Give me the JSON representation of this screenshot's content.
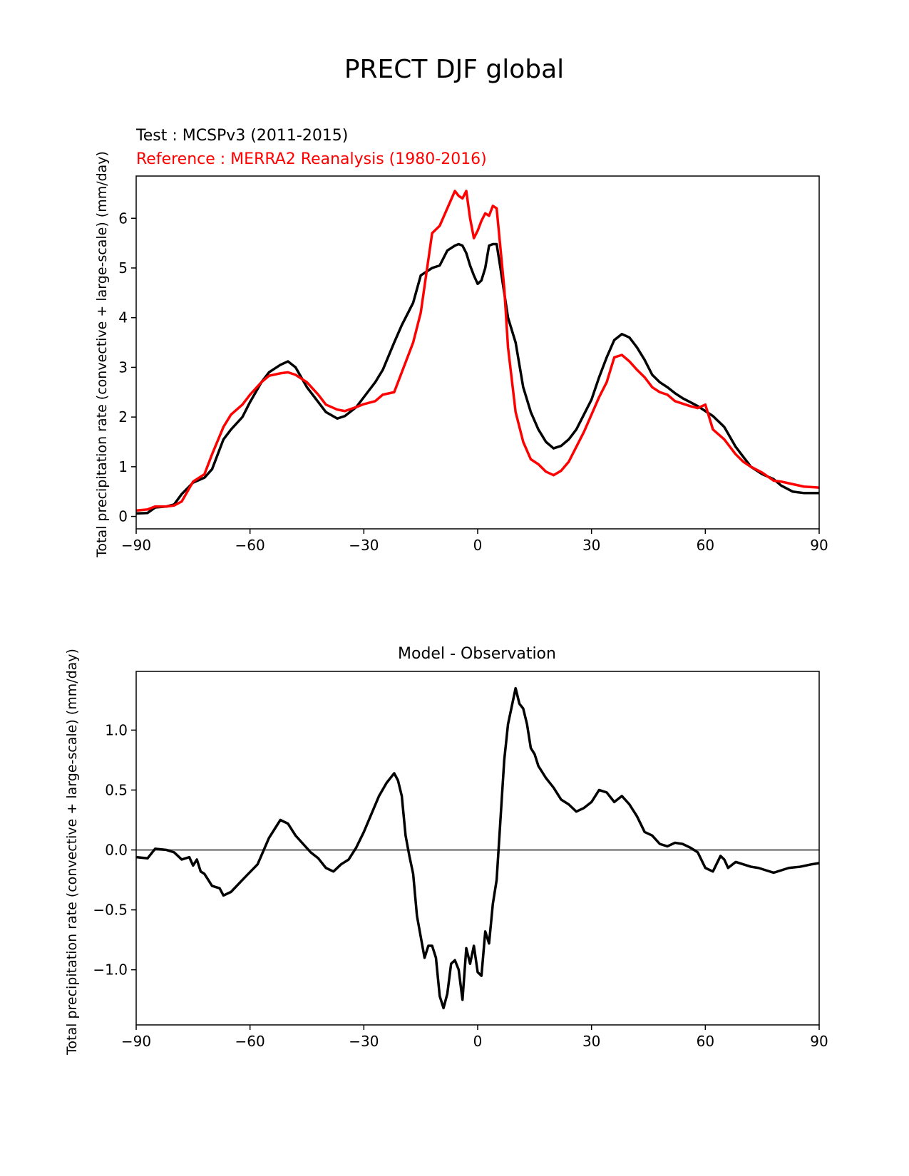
{
  "figure": {
    "title": "PRECT DJF global"
  },
  "colors": {
    "test": "#000000",
    "reference": "#ff0000",
    "zero_line": "#808080"
  },
  "chart_data": [
    {
      "type": "line",
      "test_label": "Test : MCSPv3 (2011-2015)",
      "reference_label": "Reference : MERRA2 Reanalysis (1980-2016)",
      "xlabel": "",
      "ylabel": "Total precipitation rate (convective + large-scale) (mm/day)",
      "xlim": [
        -90,
        90
      ],
      "ylim": [
        -0.25,
        6.85
      ],
      "xticks": [
        -90,
        -60,
        -30,
        0,
        30,
        60,
        90
      ],
      "xtick_labels": [
        "−90",
        "−60",
        "−30",
        "0",
        "30",
        "60",
        "90"
      ],
      "yticks": [
        0,
        1,
        2,
        3,
        4,
        5,
        6
      ],
      "ytick_labels": [
        "0",
        "1",
        "2",
        "3",
        "4",
        "5",
        "6"
      ],
      "grid": false,
      "x": [
        -90,
        -87,
        -85,
        -82,
        -80,
        -78,
        -75,
        -72,
        -70,
        -67,
        -65,
        -62,
        -60,
        -57,
        -55,
        -52,
        -50,
        -48,
        -45,
        -42,
        -40,
        -37,
        -35,
        -32,
        -30,
        -27,
        -25,
        -22,
        -20,
        -17,
        -15,
        -12,
        -10,
        -8,
        -6,
        -5,
        -4,
        -3,
        -2,
        -1,
        0,
        1,
        2,
        3,
        4,
        5,
        6,
        7,
        8,
        10,
        12,
        14,
        16,
        18,
        20,
        22,
        24,
        26,
        28,
        30,
        32,
        34,
        36,
        38,
        40,
        42,
        44,
        46,
        48,
        50,
        52,
        54,
        56,
        58,
        60,
        62,
        65,
        68,
        70,
        72,
        75,
        78,
        80,
        83,
        86,
        90
      ],
      "series": [
        {
          "name": "Test : MCSPv3 (2011-2015)",
          "color": "#000000",
          "values": [
            0.06,
            0.07,
            0.18,
            0.2,
            0.24,
            0.45,
            0.68,
            0.78,
            0.95,
            1.55,
            1.75,
            2.0,
            2.3,
            2.7,
            2.9,
            3.05,
            3.12,
            3.0,
            2.6,
            2.3,
            2.1,
            1.97,
            2.02,
            2.2,
            2.4,
            2.7,
            2.95,
            3.5,
            3.85,
            4.3,
            4.85,
            5.0,
            5.05,
            5.35,
            5.45,
            5.48,
            5.45,
            5.3,
            5.05,
            4.85,
            4.68,
            4.75,
            5.0,
            5.45,
            5.48,
            5.48,
            5.0,
            4.5,
            4.0,
            3.5,
            2.6,
            2.1,
            1.75,
            1.5,
            1.37,
            1.42,
            1.55,
            1.75,
            2.05,
            2.35,
            2.8,
            3.2,
            3.55,
            3.67,
            3.6,
            3.4,
            3.15,
            2.85,
            2.7,
            2.6,
            2.48,
            2.38,
            2.3,
            2.22,
            2.12,
            2.02,
            1.8,
            1.4,
            1.2,
            1.0,
            0.85,
            0.75,
            0.62,
            0.5,
            0.47,
            0.47
          ]
        },
        {
          "name": "Reference : MERRA2 Reanalysis (1980-2016)",
          "color": "#ff0000",
          "values": [
            0.12,
            0.14,
            0.2,
            0.2,
            0.22,
            0.3,
            0.7,
            0.85,
            1.25,
            1.8,
            2.05,
            2.25,
            2.45,
            2.7,
            2.83,
            2.88,
            2.9,
            2.85,
            2.7,
            2.45,
            2.25,
            2.15,
            2.12,
            2.2,
            2.26,
            2.32,
            2.45,
            2.5,
            2.9,
            3.5,
            4.1,
            5.7,
            5.85,
            6.2,
            6.55,
            6.45,
            6.4,
            6.55,
            6.0,
            5.6,
            5.75,
            5.95,
            6.1,
            6.05,
            6.25,
            6.2,
            5.4,
            4.6,
            3.4,
            2.1,
            1.5,
            1.15,
            1.05,
            0.9,
            0.83,
            0.92,
            1.1,
            1.4,
            1.7,
            2.05,
            2.4,
            2.7,
            3.2,
            3.25,
            3.12,
            2.95,
            2.8,
            2.6,
            2.5,
            2.45,
            2.32,
            2.27,
            2.22,
            2.18,
            2.25,
            1.75,
            1.55,
            1.25,
            1.1,
            1.0,
            0.88,
            0.72,
            0.7,
            0.65,
            0.6,
            0.58
          ]
        }
      ]
    },
    {
      "type": "line",
      "title": "Model - Observation",
      "xlabel": "",
      "ylabel": "Total precipitation rate (convective + large-scale) (mm/day)",
      "xlim": [
        -90,
        90
      ],
      "ylim": [
        -1.46,
        1.49
      ],
      "xticks": [
        -90,
        -60,
        -30,
        0,
        30,
        60,
        90
      ],
      "xtick_labels": [
        "−90",
        "−60",
        "−30",
        "0",
        "30",
        "60",
        "90"
      ],
      "yticks": [
        -1.0,
        -0.5,
        0.0,
        0.5,
        1.0
      ],
      "ytick_labels": [
        "−1.0",
        "−0.5",
        "0.0",
        "0.5",
        "1.0"
      ],
      "grid": false,
      "zero_line": true,
      "x": [
        -90,
        -87,
        -85,
        -82,
        -80,
        -78,
        -76,
        -75,
        -74,
        -73,
        -72,
        -70,
        -68,
        -67,
        -65,
        -62,
        -58,
        -55,
        -52,
        -50,
        -48,
        -46,
        -44,
        -42,
        -40,
        -38,
        -36,
        -34,
        -32,
        -30,
        -28,
        -26,
        -24,
        -22,
        -21,
        -20,
        -19,
        -18,
        -17,
        -16,
        -14,
        -13,
        -12,
        -11,
        -10,
        -9,
        -8,
        -7,
        -6,
        -5,
        -4,
        -3,
        -2,
        -1,
        0,
        1,
        2,
        3,
        4,
        5,
        6,
        7,
        8,
        9,
        10,
        11,
        12,
        13,
        14,
        15,
        16,
        17,
        18,
        20,
        22,
        24,
        26,
        28,
        30,
        32,
        34,
        36,
        38,
        40,
        42,
        44,
        46,
        48,
        50,
        52,
        54,
        56,
        58,
        60,
        62,
        64,
        65,
        66,
        68,
        70,
        72,
        74,
        76,
        78,
        80,
        82,
        85,
        88,
        90
      ],
      "series": [
        {
          "name": "",
          "color": "#000000",
          "values": [
            -0.06,
            -0.07,
            0.01,
            0.0,
            -0.02,
            -0.08,
            -0.06,
            -0.13,
            -0.08,
            -0.18,
            -0.2,
            -0.3,
            -0.32,
            -0.38,
            -0.35,
            -0.25,
            -0.12,
            0.1,
            0.25,
            0.22,
            0.12,
            0.05,
            -0.02,
            -0.07,
            -0.15,
            -0.18,
            -0.12,
            -0.08,
            0.02,
            0.15,
            0.3,
            0.45,
            0.56,
            0.64,
            0.58,
            0.45,
            0.12,
            -0.05,
            -0.2,
            -0.55,
            -0.9,
            -0.8,
            -0.8,
            -0.9,
            -1.22,
            -1.32,
            -1.2,
            -0.95,
            -0.92,
            -1.0,
            -1.25,
            -0.82,
            -0.95,
            -0.8,
            -1.02,
            -1.05,
            -0.68,
            -0.78,
            -0.45,
            -0.25,
            0.25,
            0.75,
            1.05,
            1.2,
            1.35,
            1.22,
            1.18,
            1.05,
            0.85,
            0.8,
            0.7,
            0.65,
            0.6,
            0.52,
            0.42,
            0.38,
            0.32,
            0.35,
            0.4,
            0.5,
            0.48,
            0.4,
            0.45,
            0.38,
            0.28,
            0.15,
            0.12,
            0.05,
            0.03,
            0.06,
            0.05,
            0.02,
            -0.02,
            -0.15,
            -0.18,
            -0.05,
            -0.08,
            -0.15,
            -0.1,
            -0.12,
            -0.14,
            -0.15,
            -0.17,
            -0.19,
            -0.17,
            -0.15,
            -0.14,
            -0.12,
            -0.11
          ]
        }
      ]
    }
  ]
}
